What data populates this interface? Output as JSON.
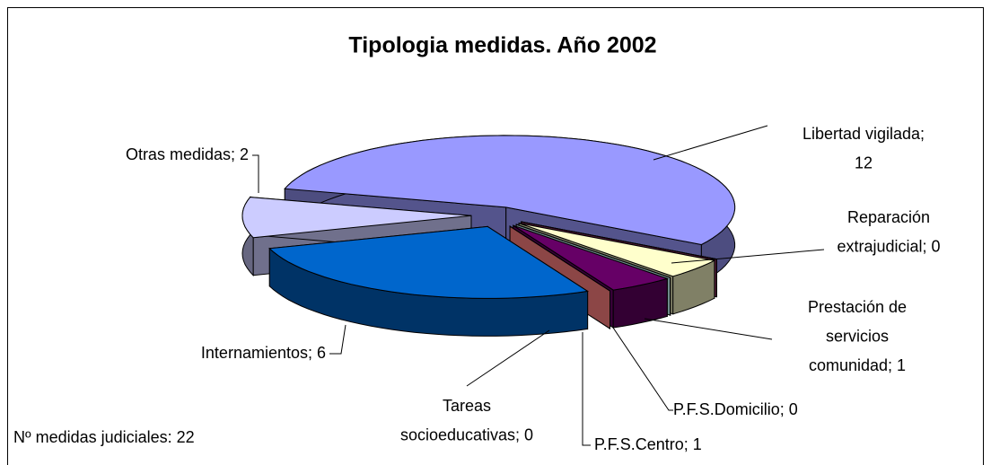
{
  "chart_data": {
    "type": "pie3d",
    "title": "Tipologia medidas. Año 2002",
    "note": "Nº medidas judiciales: 22",
    "categories": [
      "Libertad vigilada",
      "Reparación extrajudicial",
      "Prestación de servicios comunidad",
      "P.F.S.Domicilio",
      "P.F.S.Centro",
      "Tareas socioeducativas",
      "Internamientos",
      "Otras medidas"
    ],
    "values": [
      12,
      0,
      1,
      0,
      1,
      0,
      6,
      2
    ],
    "value_labels": [
      [
        "Libertad vigilada;",
        "12"
      ],
      [
        "Reparación",
        "extrajudicial; 0"
      ],
      [
        "Prestación de",
        "servicios",
        "comunidad; 1"
      ],
      [
        "P.F.S.Domicilio; 0"
      ],
      [
        "P.F.S.Centro; 1"
      ],
      [
        "Tareas",
        "socioeducativas; 0"
      ],
      [
        "Internamientos; 6"
      ],
      [
        "Otras medidas; 2"
      ]
    ],
    "colors": [
      "#9999ff",
      "#993366",
      "#ffffcc",
      "#ccffff",
      "#660066",
      "#ff8080",
      "#0066cc",
      "#ccccff"
    ]
  }
}
